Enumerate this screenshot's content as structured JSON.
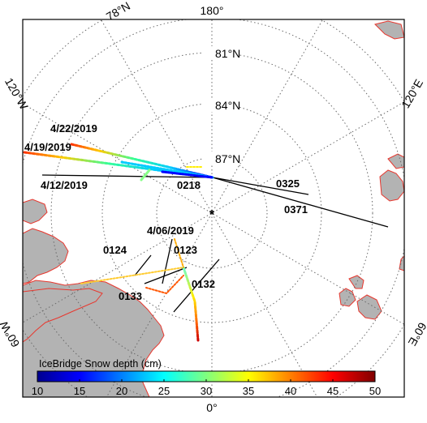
{
  "map": {
    "graticule": {
      "lon_top": "180°",
      "lon_bottom": "0°",
      "lon_upper_left": "120°W",
      "lon_upper_right": "120°E",
      "lon_lower_left": "60°W",
      "lon_lower_right": "60°E",
      "lat_78": "78°N",
      "lat_81": "81°N",
      "lat_84": "84°N",
      "lat_87": "87°N"
    },
    "pole_marker": "*",
    "flight_dates": {
      "d1": "4/22/2019",
      "d2": "4/19/2019",
      "d3": "4/12/2019",
      "d4": "4/06/2019"
    },
    "track_ids": {
      "t0218": "0218",
      "t0325": "0325",
      "t0371": "0371",
      "t0124": "0124",
      "t0123": "0123",
      "t0133": "0133",
      "t0132": "0132"
    },
    "colorbar": {
      "title": "IceBridge Snow depth (cm)",
      "ticks": [
        "10",
        "15",
        "20",
        "25",
        "30",
        "35",
        "40",
        "45",
        "50"
      ],
      "min": 10,
      "max": 50
    },
    "colors": {
      "land": "#b3b3b3",
      "coastline": "#e8372e",
      "grid": "#6a6a6a",
      "frame": "#000000"
    }
  }
}
